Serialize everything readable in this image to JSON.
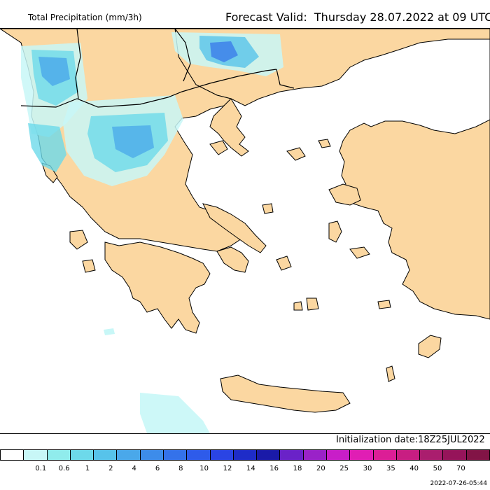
{
  "header": {
    "title_left": "Total Precipitation (mm/3h)",
    "title_right": "Forecast Valid:  Thursday 28.07.2022 at 09 UTC"
  },
  "map": {
    "land_color": "#fbd7a1",
    "sea_color": "#ffffff",
    "border_color": "#000000"
  },
  "init_text": "Initialization date:18Z25JUL2022",
  "legend": {
    "colors": [
      "#ffffff",
      "#c8f7f7",
      "#90ecec",
      "#6dd9ea",
      "#57c3ea",
      "#4aa8ea",
      "#3d8cea",
      "#3472ea",
      "#2e5bea",
      "#2a44e4",
      "#1e2cc8",
      "#1a1aa8",
      "#6a22c8",
      "#9a22c8",
      "#c81ec8",
      "#e01eb4",
      "#dc1e96",
      "#c81e82",
      "#aa1e6e",
      "#96145a",
      "#821446"
    ],
    "labels": [
      "0.1",
      "0.6",
      "1",
      "2",
      "4",
      "6",
      "8",
      "10",
      "12",
      "14",
      "16",
      "18",
      "20",
      "25",
      "30",
      "35",
      "40",
      "50",
      "70"
    ]
  },
  "timestamp": "2022-07-26-05:44"
}
